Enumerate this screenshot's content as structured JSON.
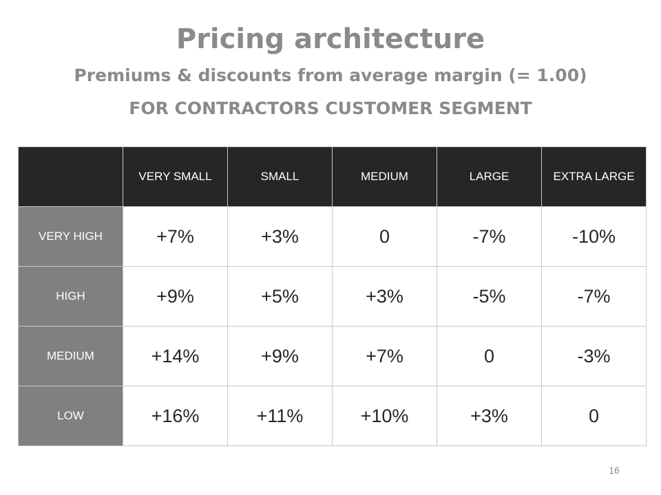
{
  "slide": {
    "title": "Pricing architecture",
    "subtitle_line1": "Premiums & discounts from average margin (= 1.00)",
    "subtitle_line2": "FOR CONTRACTORS CUSTOMER SEGMENT",
    "page_number": "16"
  },
  "table": {
    "columns": [
      "VERY SMALL",
      "SMALL",
      "MEDIUM",
      "LARGE",
      "EXTRA LARGE"
    ],
    "rows": [
      {
        "label": "VERY HIGH",
        "values": [
          "+7%",
          "+3%",
          "0",
          "-7%",
          "-10%"
        ]
      },
      {
        "label": "HIGH",
        "values": [
          "+9%",
          "+5%",
          "+3%",
          "-5%",
          "-7%"
        ]
      },
      {
        "label": "MEDIUM",
        "values": [
          "+14%",
          "+9%",
          "+7%",
          "0",
          "-3%"
        ]
      },
      {
        "label": "LOW",
        "values": [
          "+16%",
          "+11%",
          "+10%",
          "+3%",
          "0"
        ]
      }
    ]
  },
  "colors": {
    "header_bg": "#262626",
    "row_header_bg": "#808080",
    "title_text": "#8a8a8a"
  }
}
